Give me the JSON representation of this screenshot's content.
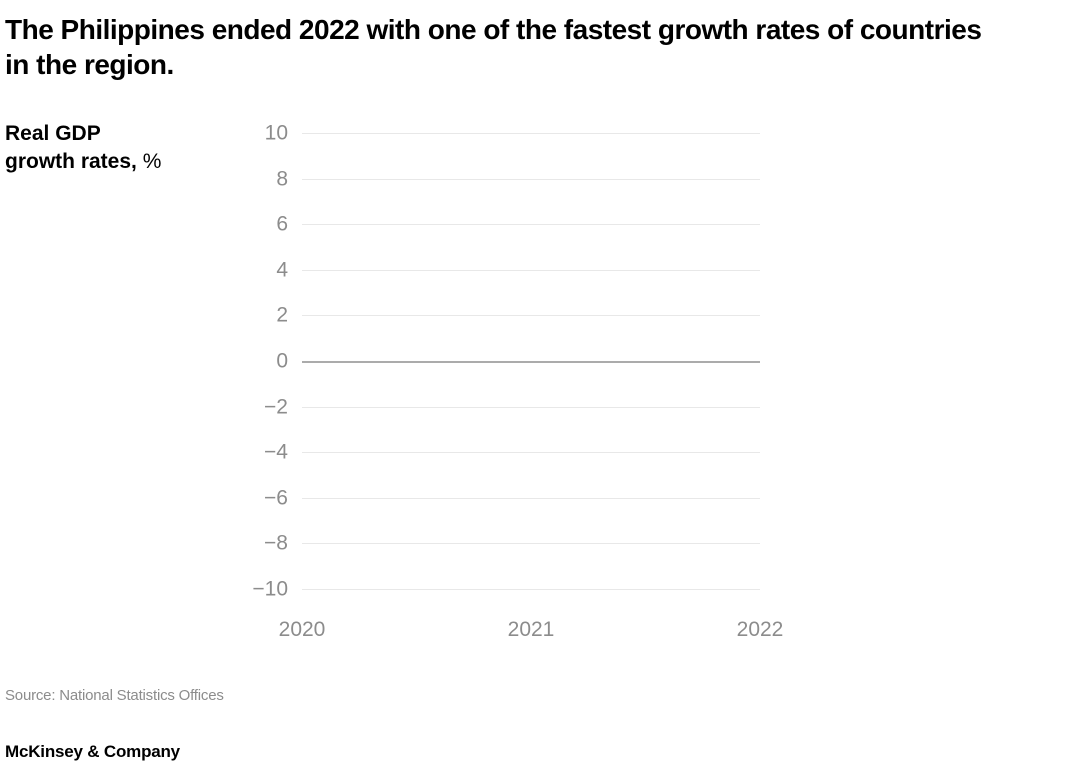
{
  "header": {
    "title": "The Philippines ended 2022 with one of the fastest growth rates of countries\nin the region."
  },
  "chart_data": {
    "type": "line",
    "title": "Real GDP growth rates, %",
    "unit_label_bold": "Real GDP\ngrowth rates,",
    "unit_label_unit": " %",
    "xlabel": "",
    "ylabel": "Real GDP growth rates, %",
    "categories": [
      "2020",
      "2021",
      "2022"
    ],
    "series": [],
    "ylim": [
      -10,
      10
    ],
    "yticks": [
      10,
      8,
      6,
      4,
      2,
      0,
      -2,
      -4,
      -6,
      -8,
      -10
    ],
    "grid": true,
    "legend_position": "none",
    "colors": {
      "gridline": "#e8e8e8",
      "zero_line": "#ababab",
      "tick_label": "#8c8c8c",
      "title_text": "#000000"
    }
  },
  "footer": {
    "source": "Source: National Statistics Offices",
    "brand": "McKinsey & Company"
  }
}
